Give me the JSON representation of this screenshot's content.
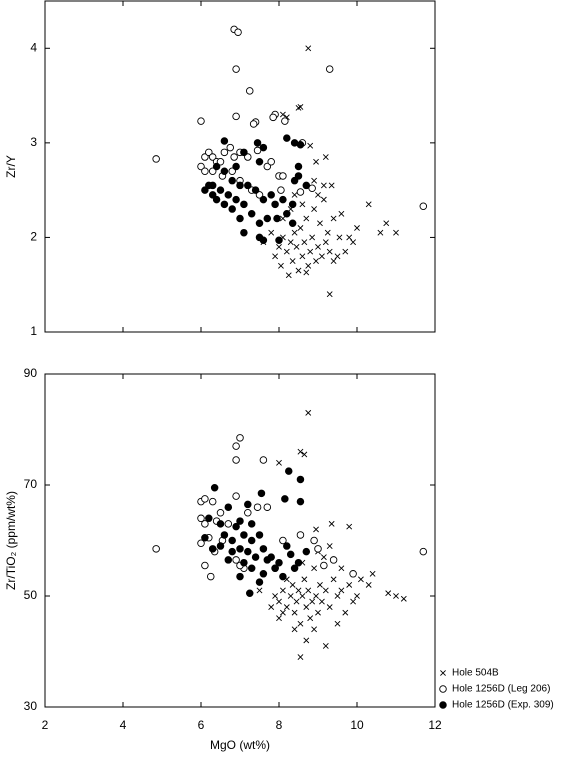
{
  "chart_data": [
    {
      "type": "scatter",
      "ylabel": "Zr/Y",
      "xlim": [
        2,
        12
      ],
      "xticks": [
        2,
        4,
        6,
        8,
        10,
        12
      ],
      "ylim": [
        1,
        4.5
      ],
      "yticks": [
        1,
        2,
        3,
        4
      ],
      "series": [
        {
          "marker": "x",
          "color": "#000000",
          "x": [
            8.75,
            8.1,
            8.2,
            8.5,
            8.55,
            8.8,
            8.95,
            9.2,
            8.9,
            9.15,
            9.35,
            10.0,
            10.3,
            10.6,
            10.75,
            11.0,
            9.3,
            7.6,
            7.9,
            8.0,
            8.1,
            8.2,
            8.3,
            8.35,
            8.4,
            8.45,
            8.5,
            8.55,
            8.6,
            8.65,
            8.7,
            8.75,
            8.8,
            8.85,
            8.9,
            8.95,
            9.0,
            9.05,
            9.1,
            9.15,
            9.2,
            9.25,
            9.3,
            9.4,
            9.5,
            9.55,
            9.6,
            9.7,
            9.8,
            9.9,
            8.1,
            8.3,
            8.25,
            8.7,
            9.0,
            8.4,
            7.8,
            8.05,
            8.6,
            9.4
          ],
          "values": [
            4.0,
            3.3,
            3.27,
            3.37,
            3.38,
            2.97,
            2.8,
            2.85,
            2.6,
            2.55,
            2.55,
            2.1,
            2.35,
            2.05,
            2.15,
            2.05,
            1.4,
            1.95,
            1.8,
            1.9,
            2.0,
            1.85,
            1.95,
            1.75,
            2.05,
            1.9,
            1.65,
            2.1,
            1.8,
            1.95,
            2.2,
            1.7,
            1.85,
            2.0,
            2.3,
            1.75,
            1.9,
            2.15,
            1.8,
            2.4,
            1.95,
            2.05,
            1.85,
            2.2,
            1.8,
            2.0,
            2.25,
            1.85,
            2.0,
            1.95,
            2.2,
            2.3,
            1.6,
            1.63,
            2.45,
            2.45,
            2.05,
            1.7,
            2.35,
            1.75
          ]
        },
        {
          "marker": "open",
          "color": "#000000",
          "x": [
            4.85,
            6.85,
            6.95,
            6.9,
            7.25,
            9.3,
            6.0,
            6.9,
            7.4,
            7.35,
            7.9,
            7.85,
            8.15,
            8.6,
            6.1,
            6.2,
            6.3,
            6.0,
            6.1,
            6.4,
            6.5,
            6.6,
            6.75,
            6.85,
            7.0,
            7.2,
            7.45,
            7.7,
            6.3,
            6.55,
            6.8,
            7.0,
            7.3,
            7.8,
            8.0,
            8.1,
            8.05,
            8.55,
            8.85,
            11.7,
            7.5
          ],
          "values": [
            2.83,
            4.2,
            4.17,
            3.78,
            3.55,
            3.78,
            3.23,
            3.28,
            3.22,
            3.2,
            3.3,
            3.27,
            3.23,
            3.0,
            2.85,
            2.9,
            2.85,
            2.75,
            2.7,
            2.8,
            2.8,
            2.9,
            2.95,
            2.85,
            2.9,
            2.85,
            2.92,
            2.75,
            2.7,
            2.65,
            2.7,
            2.6,
            2.5,
            2.8,
            2.65,
            2.65,
            2.5,
            2.48,
            2.52,
            2.33,
            2.45
          ]
        },
        {
          "marker": "filled",
          "color": "#000000",
          "x": [
            6.6,
            7.45,
            7.6,
            8.2,
            8.4,
            8.55,
            7.1,
            7.5,
            6.9,
            6.6,
            6.4,
            6.8,
            7.0,
            6.2,
            6.1,
            6.3,
            6.5,
            6.7,
            7.2,
            7.4,
            6.4,
            6.6,
            6.9,
            7.1,
            7.6,
            7.8,
            7.9,
            8.1,
            8.35,
            8.5,
            8.5,
            8.7,
            6.8,
            7.0,
            7.3,
            7.5,
            7.7,
            7.95,
            8.2,
            8.35,
            7.1,
            7.5,
            7.6,
            8.0,
            8.4,
            6.3
          ],
          "values": [
            3.02,
            3.0,
            2.95,
            3.05,
            3.0,
            2.98,
            2.9,
            2.8,
            2.75,
            2.7,
            2.75,
            2.6,
            2.55,
            2.55,
            2.5,
            2.45,
            2.5,
            2.45,
            2.55,
            2.5,
            2.4,
            2.35,
            2.4,
            2.35,
            2.4,
            2.45,
            2.35,
            2.4,
            2.35,
            2.75,
            2.65,
            2.55,
            2.3,
            2.2,
            2.25,
            2.15,
            2.2,
            2.2,
            2.25,
            2.15,
            2.05,
            2.0,
            1.97,
            1.97,
            2.6,
            2.55
          ]
        }
      ]
    },
    {
      "type": "scatter",
      "ylabel": "Zr/TiO₂ (ppm/wt%)",
      "xlabel": "MgO (wt%)",
      "xlim": [
        2,
        12
      ],
      "xticks": [
        2,
        4,
        6,
        8,
        10,
        12
      ],
      "ylim": [
        30,
        90
      ],
      "yticks": [
        30,
        50,
        70,
        90
      ],
      "series": [
        {
          "name": "Hole 504B",
          "marker": "x",
          "color": "#000000",
          "x": [
            8.75,
            8.55,
            8.65,
            8.0,
            8.95,
            9.35,
            9.8,
            10.4,
            10.8,
            11.0,
            11.2,
            10.3,
            8.55,
            9.2,
            8.7,
            7.5,
            8.0,
            7.9,
            8.0,
            8.1,
            8.2,
            8.3,
            8.35,
            8.4,
            8.45,
            8.5,
            8.55,
            8.6,
            8.65,
            8.7,
            8.75,
            8.8,
            8.85,
            8.9,
            8.95,
            9.0,
            9.05,
            9.1,
            9.15,
            9.2,
            9.3,
            9.4,
            9.5,
            9.6,
            9.7,
            9.8,
            9.9,
            10.0,
            8.2,
            8.4,
            8.6,
            9.0,
            9.3,
            9.5,
            8.1,
            7.8,
            8.9,
            9.6,
            10.1
          ],
          "values": [
            83,
            76,
            75.5,
            74,
            62,
            63,
            62.5,
            54,
            50.5,
            50,
            49.5,
            52,
            39,
            41,
            42,
            51,
            46,
            50,
            49,
            51,
            48,
            50,
            52,
            47,
            49,
            51,
            45,
            50,
            53,
            48,
            51,
            46,
            49,
            55,
            50,
            47,
            52,
            49,
            57,
            51,
            48,
            53,
            50,
            55,
            47,
            52,
            49,
            50,
            53,
            44,
            56,
            58,
            59,
            45,
            47,
            48,
            44,
            51,
            53
          ]
        },
        {
          "name": "Hole 1256D (Leg 206)",
          "marker": "open",
          "color": "#000000",
          "x": [
            4.85,
            6.9,
            7.0,
            6.9,
            7.6,
            6.0,
            6.1,
            6.3,
            6.5,
            6.9,
            7.2,
            7.45,
            7.7,
            6.0,
            6.1,
            6.4,
            6.7,
            6.2,
            6.55,
            6.0,
            6.35,
            6.9,
            7.1,
            6.25,
            6.1,
            7.0,
            8.1,
            8.55,
            8.9,
            9.0,
            9.15,
            9.9,
            9.4,
            7.9,
            11.7
          ],
          "values": [
            58.5,
            77,
            78.5,
            74.5,
            74.5,
            67,
            67.5,
            67,
            65,
            68,
            65,
            66,
            66,
            64,
            63,
            63.5,
            63,
            60.5,
            60,
            59.5,
            58,
            56.5,
            55,
            53.5,
            55.5,
            55.5,
            60,
            61,
            60,
            58.5,
            55.5,
            54,
            56.5,
            55,
            58
          ]
        },
        {
          "name": "Hole 1256D (Exp. 309)",
          "marker": "filled",
          "color": "#000000",
          "x": [
            8.25,
            8.55,
            8.15,
            8.55,
            7.55,
            7.2,
            6.35,
            6.7,
            6.2,
            6.5,
            6.9,
            7.0,
            7.3,
            6.6,
            6.8,
            7.1,
            7.3,
            7.5,
            6.5,
            6.8,
            7.0,
            7.2,
            7.4,
            7.6,
            7.8,
            8.0,
            8.3,
            8.5,
            8.7,
            6.7,
            7.1,
            7.3,
            7.6,
            7.9,
            8.1,
            7.0,
            7.5,
            7.25,
            8.4,
            6.1,
            6.3,
            7.7,
            8.2
          ],
          "values": [
            72.5,
            71,
            67.5,
            67,
            68.5,
            66.5,
            69.5,
            66,
            64,
            63,
            62.5,
            63.5,
            63,
            61,
            60,
            61,
            60,
            61,
            59,
            58,
            58.5,
            58,
            57,
            58.5,
            57,
            56,
            57.5,
            56,
            58,
            56.5,
            56,
            55,
            54,
            55,
            53.5,
            53.5,
            52.5,
            50.5,
            55,
            60.5,
            58.5,
            56.5,
            59
          ]
        }
      ]
    }
  ]
}
